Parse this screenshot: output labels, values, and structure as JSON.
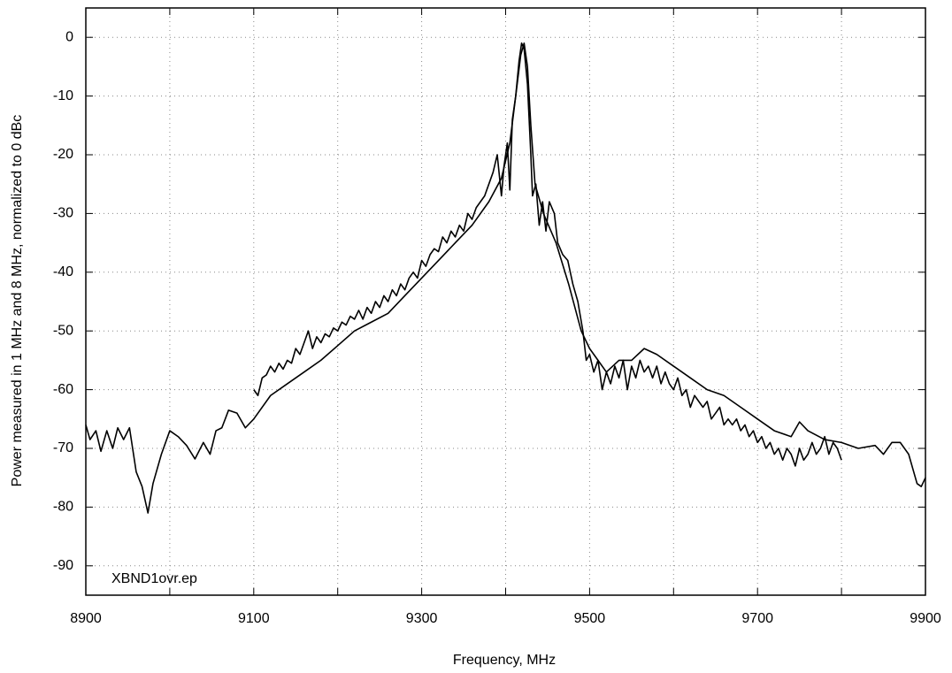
{
  "chart_data": {
    "type": "line",
    "xlabel": "Frequency, MHz",
    "ylabel": "Power measured in 1 MHz and 8 MHz, normalized to 0 dBc",
    "annotation": "XBND1ovr.ep",
    "xlim": [
      8900,
      9900
    ],
    "ylim": [
      -95,
      5
    ],
    "xticks": [
      8900,
      9100,
      9300,
      9500,
      9700,
      9900
    ],
    "xminor_ticks": [
      9000,
      9200,
      9400,
      9600,
      9800
    ],
    "yticks": [
      0,
      -10,
      -20,
      -30,
      -40,
      -50,
      -60,
      -70,
      -80,
      -90
    ],
    "grid": true,
    "series": [
      {
        "color": "#000000",
        "x": [
          8900,
          8905,
          8912,
          8918,
          8925,
          8932,
          8938,
          8945,
          8952,
          8960,
          8967,
          8974,
          8980,
          8990,
          9000,
          9010,
          9020,
          9030,
          9040,
          9048,
          9055,
          9062,
          9070,
          9080,
          9090,
          9100,
          9120,
          9140,
          9160,
          9180,
          9200,
          9220,
          9240,
          9260,
          9280,
          9300,
          9320,
          9340,
          9360,
          9380,
          9395,
          9405,
          9412,
          9418,
          9422,
          9426,
          9430,
          9435,
          9445,
          9460,
          9475,
          9490,
          9500,
          9510,
          9520,
          9535,
          9550,
          9565,
          9580,
          9600,
          9620,
          9640,
          9660,
          9680,
          9700,
          9720,
          9740,
          9750,
          9760,
          9780,
          9800,
          9820,
          9840,
          9850,
          9860,
          9870,
          9880,
          9890,
          9895,
          9900
        ],
        "values": [
          -66,
          -68.5,
          -67,
          -70.5,
          -67,
          -70,
          -66.5,
          -68.5,
          -66.5,
          -74,
          -76.5,
          -81,
          -76,
          -71,
          -67,
          -68,
          -69.5,
          -71.8,
          -69,
          -71,
          -67,
          -66.5,
          -63.5,
          -64,
          -66.5,
          -65,
          -61,
          -59,
          -57,
          -55,
          -52.5,
          -50,
          -48.5,
          -47,
          -44,
          -41,
          -38,
          -35,
          -32,
          -28,
          -24,
          -18,
          -10,
          -3,
          -1,
          -5,
          -15,
          -25,
          -30,
          -35,
          -42,
          -50,
          -53,
          -55,
          -57,
          -55,
          -55,
          -53,
          -54,
          -56,
          -58,
          -60,
          -61,
          -63,
          -65,
          -67,
          -68,
          -65.5,
          -67,
          -68.5,
          -69,
          -70,
          -69.5,
          -71,
          -69,
          -69,
          -71,
          -76,
          -76.5,
          -75
        ]
      },
      {
        "color": "#000000",
        "x": [
          9100,
          9105,
          9110,
          9115,
          9120,
          9125,
          9130,
          9135,
          9140,
          9145,
          9150,
          9155,
          9160,
          9165,
          9170,
          9175,
          9180,
          9185,
          9190,
          9195,
          9200,
          9205,
          9210,
          9215,
          9220,
          9225,
          9230,
          9235,
          9240,
          9245,
          9250,
          9255,
          9260,
          9265,
          9270,
          9275,
          9280,
          9285,
          9290,
          9295,
          9300,
          9305,
          9310,
          9315,
          9320,
          9325,
          9330,
          9335,
          9340,
          9345,
          9350,
          9355,
          9360,
          9365,
          9370,
          9375,
          9380,
          9385,
          9390,
          9395,
          9398,
          9402,
          9405,
          9408,
          9412,
          9416,
          9419,
          9422,
          9426,
          9430,
          9432,
          9436,
          9440,
          9444,
          9448,
          9452,
          9458,
          9462,
          9468,
          9474,
          9480,
          9486,
          9492,
          9496,
          9500,
          9505,
          9510,
          9515,
          9520,
          9525,
          9530,
          9535,
          9540,
          9545,
          9550,
          9555,
          9560,
          9565,
          9570,
          9575,
          9580,
          9585,
          9590,
          9595,
          9600,
          9605,
          9610,
          9615,
          9620,
          9625,
          9630,
          9635,
          9640,
          9645,
          9650,
          9655,
          9660,
          9665,
          9670,
          9675,
          9680,
          9685,
          9690,
          9695,
          9700,
          9705,
          9710,
          9715,
          9720,
          9725,
          9730,
          9735,
          9740,
          9745,
          9750,
          9755,
          9760,
          9765,
          9770,
          9775,
          9780,
          9785,
          9790,
          9795,
          9800
        ],
        "values": [
          -60,
          -61,
          -58,
          -57.5,
          -56,
          -57,
          -55.5,
          -56.5,
          -55,
          -55.5,
          -53,
          -54,
          -52,
          -50,
          -53,
          -51,
          -52,
          -50.5,
          -51,
          -49.5,
          -50,
          -48.5,
          -49,
          -47.5,
          -48,
          -46.5,
          -48,
          -46,
          -47,
          -45,
          -46,
          -44,
          -45,
          -43,
          -44,
          -42,
          -43,
          -41,
          -40,
          -41,
          -38,
          -39,
          -37,
          -36,
          -36.5,
          -34,
          -35,
          -33,
          -34,
          -32,
          -33,
          -30,
          -31,
          -29,
          -28,
          -27,
          -25,
          -23,
          -20,
          -27,
          -22,
          -18,
          -26,
          -14,
          -10,
          -4,
          -1,
          -2,
          -8,
          -20,
          -27,
          -25,
          -32,
          -28,
          -33,
          -28,
          -30,
          -35,
          -37,
          -38,
          -42,
          -45,
          -50,
          -55,
          -54,
          -57,
          -55,
          -60,
          -57,
          -59,
          -56,
          -58,
          -55,
          -60,
          -56,
          -58,
          -55,
          -57,
          -56,
          -58,
          -56,
          -59,
          -57,
          -59,
          -60,
          -58,
          -61,
          -60,
          -63,
          -61,
          -62,
          -63,
          -62,
          -65,
          -64,
          -63,
          -66,
          -65,
          -66,
          -65,
          -67,
          -66,
          -68,
          -67,
          -69,
          -68,
          -70,
          -69,
          -71,
          -70,
          -72,
          -70,
          -71,
          -73,
          -70,
          -72,
          -71,
          -69,
          -71,
          -70,
          -68,
          -71,
          -69,
          -70,
          -72
        ]
      }
    ]
  }
}
